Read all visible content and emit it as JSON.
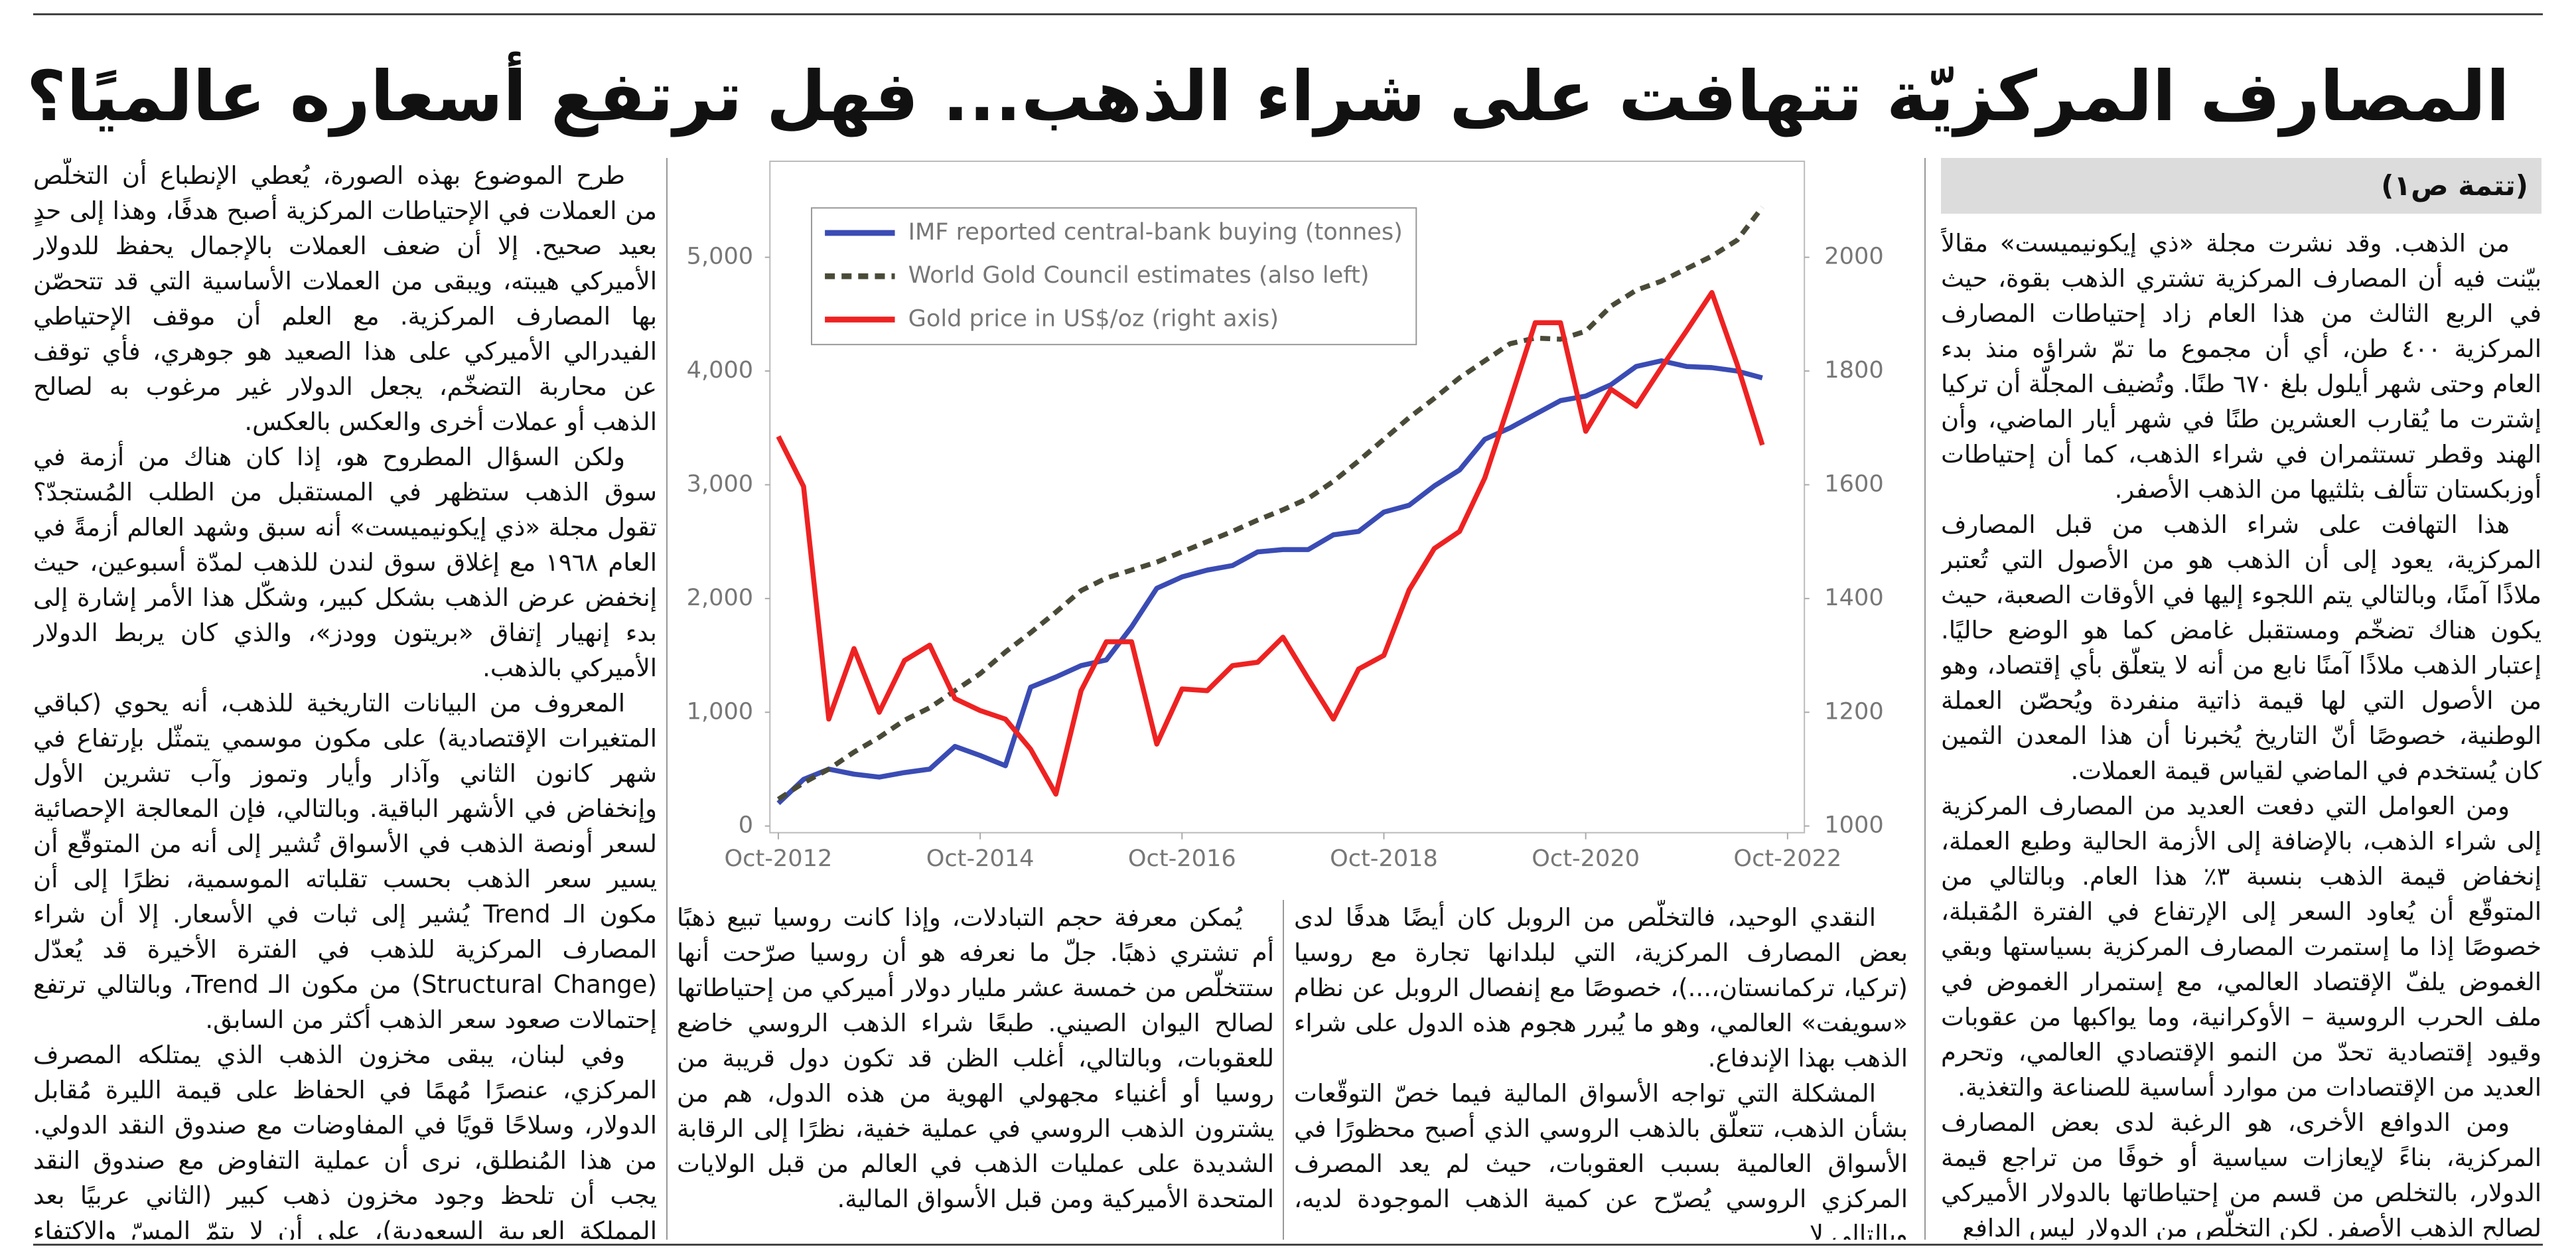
{
  "headline": "المصارف المركزيّة تتهافت على شراء الذهب... فهل ترتفع أسعاره عالميًا؟",
  "continued": "(تتمة ص١)",
  "columns": [
    {
      "paragraphs": [
        "من الذهب. وقد نشرت مجلة «ذي إيكونيميست» مقالاً بيّنت فيه أن المصارف المركزية تشتري الذهب بقوة، حيث في الربع الثالث من هذا العام زاد إحتياطات المصارف المركزية ٤٠٠ طن، أي أن مجموع ما تمّ شراؤه منذ بدء العام وحتى شهر أيلول بلغ ٦٧٠ طنًا. وتُضيف المجلّة أن تركيا إشترت ما يُقارب العشرين طنًا في شهر أيار الماضي، وأن الهند وقطر تستثمران في شراء الذهب، كما أن إحتياطات أوزبكستان تتألف بثلثيها من الذهب الأصفر.",
        "هذا التهافت على شراء الذهب من قبل المصارف المركزية، يعود إلى أن الذهب هو من الأصول التي تُعتبر ملاذًا آمنًا، وبالتالي يتم اللجوء إليها في الأوقات الصعبة، حيث يكون هناك تضخّم ومستقبل غامض كما هو الوضع حاليًا. إعتبار الذهب ملاذًا آمنًا نابع من أنه لا يتعلّق بأي إقتصاد، وهو من الأصول التي لها قيمة ذاتية منفردة ويُحصّن العملة الوطنية، خصوصًا أنّ التاريخ يُخبرنا أن هذا المعدن الثمين كان يُستخدم في الماضي لقياس قيمة العملات.",
        "ومن العوامل التي دفعت العديد من المصارف المركزية إلى شراء الذهب، بالإضافة إلى الأزمة الحالية وطبع العملة، إنخفاض قيمة الذهب بنسبة ٣٪ هذا العام. وبالتالي من المتوقّع أن يُعاود السعر إلى الإرتفاع في الفترة المُقبلة، خصوصًا إذا ما إستمرت المصارف المركزية بسياستها وبقي الغموض يلفّ الإقتصاد العالمي، مع إستمرار الغموض في ملف الحرب الروسية – الأوكرانية، وما يواكبها من عقوبات وقيود إقتصادية تحدّ من النمو الإقتصادي العالمي، وتحرم العديد من الإقتصادات من موارد أساسية للصناعة والتغذية.",
        "ومن الدوافع الأخرى، هو الرغبة لدى بعض المصارف المركزية، بناءً لإيعازات سياسية أو خوفًا من تراجع قيمة الدولار، بالتخلص من قسم من إحتياطاتها بالدولار الأميركي لصالح الذهب الأصفر. لكن التخلّص من الدولار ليس الدافع"
      ]
    },
    {
      "paragraphs": [
        "النقدي الوحيد، فالتخلّص من الروبل كان أيضًا هدفًا لدى بعض المصارف المركزية، التي لبلدانها تجارة مع روسيا (تركيا، تركمانستان،...)، خصوصًا مع إنفصال الروبل عن نظام «سويفت» العالمي، وهو ما يُبرر هجوم هذه الدول على شراء الذهب بهذا الإندفاع.",
        "المشكلة التي تواجه الأسواق المالية فيما خصّ التوقّعات بشأن الذهب، تتعلّق بالذهب الروسي الذي أصبح محظورًا في الأسواق العالمية بسبب العقوبات، حيث لم يعد المصرف المركزي الروسي يُصرّح عن كمية الذهب الموجودة لديه، وبالتالي لا"
      ]
    },
    {
      "paragraphs": [
        "يُمكن معرفة حجم التبادلات، وإذا كانت روسيا تبيع ذهبًا أم تشتري ذهبًا. جلّ ما نعرفه هو أن روسيا صرّحت أنها ستتخلّص من خمسة عشر مليار دولار أميركي من إحتياطاتها لصالح اليوان الصيني. طبعًا شراء الذهب الروسي خاضع للعقوبات، وبالتالي، أغلب الظن قد تكون دول قريبة من روسيا أو أغنياء مجهولي الهوية من هذه الدول، هم من يشترون الذهب الروسي في عملية خفية، نظرًا إلى الرقابة الشديدة على عمليات الذهب في العالم من قبل الولايات المتحدة الأميركية ومن قبل الأسواق المالية."
      ]
    },
    {
      "paragraphs": [
        "طرح الموضوع بهذه الصورة، يُعطي الإنطباع أن التخلّص من العملات في الإحتياطات المركزية أصبح هدفًا، وهذا إلى حدٍ بعيد صحيح. إلا أن ضعف العملات بالإجمال يحفظ للدولار الأميركي هيبته، ويبقى من العملات الأساسية التي قد تتحصّن بها المصارف المركزية. مع العلم أن موقف الإحتياطي الفيدرالي الأميركي على هذا الصعيد هو جوهري، فأي توقف عن محاربة التضخّم، يجعل الدولار غير مرغوب به لصالح الذهب أو عملات أخرى والعكس بالعكس.",
        "ولكن السؤال المطروح هو، إذا كان هناك من أزمة في سوق الذهب ستظهر في المستقبل من الطلب المُستجدّ؟ تقول مجلة «ذي إيكونيميست» أنه سبق وشهد العالم أزمةً في العام ١٩٦٨ مع إغلاق سوق لندن للذهب لمدّة أسبوعين، حيث إنخفض عرض الذهب بشكل كبير، وشكّل هذا الأمر إشارة إلى بدء إنهيار إتفاق «بريتون وودز»، والذي كان يربط الدولار الأميركي بالذهب.",
        "المعروف من البيانات التاريخية للذهب، أنه يحوي (كباقي المتغيرات الإقتصادية) على مكون موسمي يتمثّل بإرتفاع في شهر كانون الثاني وآذار وأيار وتموز وآب تشرين الأول وإنخفاض في الأشهر الباقية. وبالتالي، فإن المعالجة الإحصائية لسعر أونصة الذهب في الأسواق تُشير إلى أنه من المتوقّع أن يسير سعر الذهب بحسب تقلباته الموسمية، نظرًا إلى أن مكون الـ Trend يُشير إلى ثبات في الأسعار. إلا أن شراء المصارف المركزية للذهب في الفترة الأخيرة قد يُعدّل (Structural Change) من مكون الـ Trend، وبالتالي ترتفع إحتمالات صعود سعر الذهب أكثر من السابق.",
        "وفي لبنان، يبقى مخزون الذهب الذي يمتلكه المصرف المركزي، عنصرًا مُهمًا في الحفاظ على قيمة الليرة مُقابل الدولار، وسلاحًا قويًا في المفاوضات مع صندوق النقد الدولي. من هذا المُنطلق، نرى أن عملية التفاوض مع صندوق النقد يجب أن تلحظ وجود مخزون ذهب كبير (الثاني عربيًا بعد المملكة العربية السعودية)، على أن لا يتمّ المسّ والإكتفاء بإستخدامه في المفاوضات كعنصر قوّة للبنان."
      ]
    }
  ],
  "chart_data": {
    "type": "line",
    "x": [
      "2012-10",
      "2013-01",
      "2013-04",
      "2013-07",
      "2013-10",
      "2014-01",
      "2014-04",
      "2014-07",
      "2014-10",
      "2015-01",
      "2015-04",
      "2015-07",
      "2015-10",
      "2016-01",
      "2016-04",
      "2016-07",
      "2016-10",
      "2017-01",
      "2017-04",
      "2017-07",
      "2017-10",
      "2018-01",
      "2018-04",
      "2018-07",
      "2018-10",
      "2019-01",
      "2019-04",
      "2019-07",
      "2019-10",
      "2020-01",
      "2020-04",
      "2020-07",
      "2020-10",
      "2021-01",
      "2021-04",
      "2021-07",
      "2021-10",
      "2022-01",
      "2022-04",
      "2022-07"
    ],
    "series": [
      {
        "name": "IMF reported central-bank buying (tonnes)",
        "color": "#3a4cb4",
        "style": "solid",
        "values": [
          200,
          410,
          500,
          456,
          430,
          470,
          500,
          700,
          620,
          530,
          1220,
          1310,
          1410,
          1460,
          1750,
          2090,
          2190,
          2250,
          2290,
          2410,
          2430,
          2430,
          2560,
          2590,
          2760,
          2820,
          2990,
          3130,
          3400,
          3500,
          3620,
          3740,
          3780,
          3880,
          4040,
          4090,
          4040,
          4030,
          4000,
          3940
        ]
      },
      {
        "name": "World Gold Council estimates (also left)",
        "color": "#4a4a38",
        "style": "dashed",
        "values": [
          235,
          380,
          500,
          650,
          780,
          930,
          1040,
          1190,
          1340,
          1530,
          1700,
          1880,
          2070,
          2180,
          2250,
          2320,
          2410,
          2500,
          2590,
          2690,
          2780,
          2880,
          3030,
          3210,
          3400,
          3590,
          3760,
          3940,
          4090,
          4240,
          4290,
          4280,
          4350,
          4570,
          4710,
          4790,
          4900,
          5010,
          5150,
          5440
        ]
      },
      {
        "name": "Gold price in US$/oz (right axis)",
        "color": "#ee2222",
        "style": "solid",
        "axis": "y2",
        "values": [
          1685,
          1597,
          1188,
          1312,
          1200,
          1291,
          1318,
          1224,
          1203,
          1188,
          1135,
          1056,
          1238,
          1324,
          1324,
          1144,
          1241,
          1238,
          1282,
          1288,
          1332,
          1259,
          1188,
          1276,
          1300,
          1415,
          1488,
          1518,
          1612,
          1747,
          1885,
          1885,
          1694,
          1768,
          1738,
          1806,
          1871,
          1938,
          1812,
          1670
        ]
      }
    ],
    "xlim": [
      "2012-09",
      "2022-12"
    ],
    "xticks": [
      {
        "value": "2012-10",
        "label": "Oct-2012"
      },
      {
        "value": "2014-10",
        "label": "Oct-2014"
      },
      {
        "value": "2016-10",
        "label": "Oct-2016"
      },
      {
        "value": "2018-10",
        "label": "Oct-2018"
      },
      {
        "value": "2020-10",
        "label": "Oct-2020"
      },
      {
        "value": "2022-10",
        "label": "Oct-2022"
      }
    ],
    "ylim": [
      0,
      5800
    ],
    "yticks": [
      0,
      {
        "value": 1000,
        "label": "1,000"
      },
      {
        "value": 2000,
        "label": "2,000"
      },
      {
        "value": 3000,
        "label": "3,000"
      },
      {
        "value": 4000,
        "label": "4,000"
      },
      {
        "value": 5000,
        "label": "5,000"
      }
    ],
    "y2lim": [
      1000,
      2160
    ],
    "y2ticks": [
      1000,
      1200,
      1400,
      1600,
      1800,
      2000
    ],
    "legend": "top-left",
    "grid": false
  }
}
